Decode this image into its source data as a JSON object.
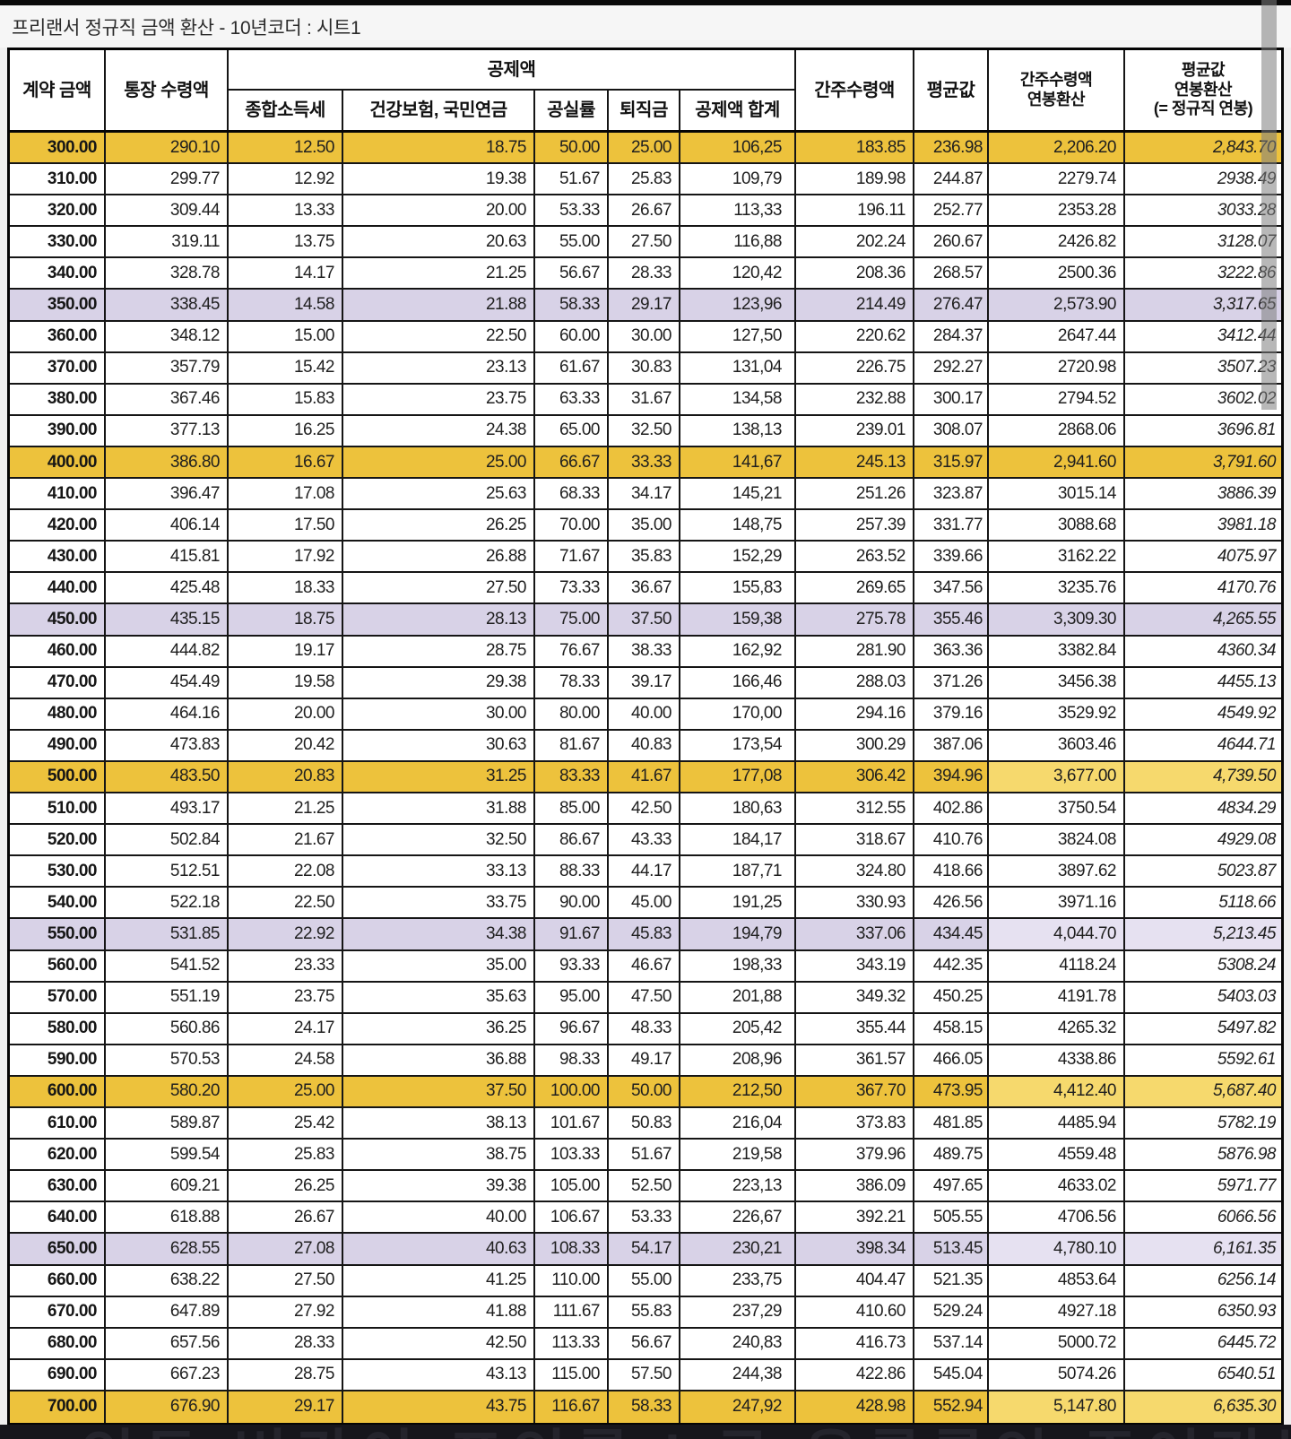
{
  "window": {
    "title": "프리랜서 정규직 금액 환산 - 10년코더 : 시트1"
  },
  "table": {
    "header": {
      "contract": "계약 금액",
      "bank_received": "통장 수령액",
      "deduction_group": "공제액",
      "sub": [
        "종합소득세",
        "건강보험, 국민연금",
        "공실률",
        "퇴직금",
        "공제액 합계"
      ],
      "deemed": "간주수령액",
      "average": "평균값",
      "deemed_annual": [
        "간주수령액",
        "연봉환산"
      ],
      "average_annual": [
        "평균값",
        "연봉환산",
        "(= 정규직 연봉)"
      ]
    },
    "rows": [
      {
        "hl": "y",
        "lr": false,
        "v": [
          "300.00",
          "290.10",
          "12.50",
          "18.75",
          "50.00",
          "25.00",
          "106,25",
          "183.85",
          "236.98",
          "2,206.20",
          "2,843.70"
        ]
      },
      {
        "hl": null,
        "lr": false,
        "v": [
          "310.00",
          "299.77",
          "12.92",
          "19.38",
          "51.67",
          "25.83",
          "109,79",
          "189.98",
          "244.87",
          "2279.74",
          "2938.49"
        ]
      },
      {
        "hl": null,
        "lr": false,
        "v": [
          "320.00",
          "309.44",
          "13.33",
          "20.00",
          "53.33",
          "26.67",
          "113,33",
          "196.11",
          "252.77",
          "2353.28",
          "3033.28"
        ]
      },
      {
        "hl": null,
        "lr": false,
        "v": [
          "330.00",
          "319.11",
          "13.75",
          "20.63",
          "55.00",
          "27.50",
          "116,88",
          "202.24",
          "260.67",
          "2426.82",
          "3128.07"
        ]
      },
      {
        "hl": null,
        "lr": false,
        "v": [
          "340.00",
          "328.78",
          "14.17",
          "21.25",
          "56.67",
          "28.33",
          "120,42",
          "208.36",
          "268.57",
          "2500.36",
          "3222.86"
        ]
      },
      {
        "hl": "p",
        "lr": false,
        "v": [
          "350.00",
          "338.45",
          "14.58",
          "21.88",
          "58.33",
          "29.17",
          "123,96",
          "214.49",
          "276.47",
          "2,573.90",
          "3,317.65"
        ]
      },
      {
        "hl": null,
        "lr": false,
        "v": [
          "360.00",
          "348.12",
          "15.00",
          "22.50",
          "60.00",
          "30.00",
          "127,50",
          "220.62",
          "284.37",
          "2647.44",
          "3412.44"
        ]
      },
      {
        "hl": null,
        "lr": false,
        "v": [
          "370.00",
          "357.79",
          "15.42",
          "23.13",
          "61.67",
          "30.83",
          "131,04",
          "226.75",
          "292.27",
          "2720.98",
          "3507.23"
        ]
      },
      {
        "hl": null,
        "lr": false,
        "v": [
          "380.00",
          "367.46",
          "15.83",
          "23.75",
          "63.33",
          "31.67",
          "134,58",
          "232.88",
          "300.17",
          "2794.52",
          "3602.02"
        ]
      },
      {
        "hl": null,
        "lr": false,
        "v": [
          "390.00",
          "377.13",
          "16.25",
          "24.38",
          "65.00",
          "32.50",
          "138,13",
          "239.01",
          "308.07",
          "2868.06",
          "3696.81"
        ]
      },
      {
        "hl": "y",
        "lr": false,
        "v": [
          "400.00",
          "386.80",
          "16.67",
          "25.00",
          "66.67",
          "33.33",
          "141,67",
          "245.13",
          "315.97",
          "2,941.60",
          "3,791.60"
        ]
      },
      {
        "hl": null,
        "lr": false,
        "v": [
          "410.00",
          "396.47",
          "17.08",
          "25.63",
          "68.33",
          "34.17",
          "145,21",
          "251.26",
          "323.87",
          "3015.14",
          "3886.39"
        ]
      },
      {
        "hl": null,
        "lr": false,
        "v": [
          "420.00",
          "406.14",
          "17.50",
          "26.25",
          "70.00",
          "35.00",
          "148,75",
          "257.39",
          "331.77",
          "3088.68",
          "3981.18"
        ]
      },
      {
        "hl": null,
        "lr": false,
        "v": [
          "430.00",
          "415.81",
          "17.92",
          "26.88",
          "71.67",
          "35.83",
          "152,29",
          "263.52",
          "339.66",
          "3162.22",
          "4075.97"
        ]
      },
      {
        "hl": null,
        "lr": false,
        "v": [
          "440.00",
          "425.48",
          "18.33",
          "27.50",
          "73.33",
          "36.67",
          "155,83",
          "269.65",
          "347.56",
          "3235.76",
          "4170.76"
        ]
      },
      {
        "hl": "p",
        "lr": false,
        "v": [
          "450.00",
          "435.15",
          "18.75",
          "28.13",
          "75.00",
          "37.50",
          "159,38",
          "275.78",
          "355.46",
          "3,309.30",
          "4,265.55"
        ]
      },
      {
        "hl": null,
        "lr": false,
        "v": [
          "460.00",
          "444.82",
          "19.17",
          "28.75",
          "76.67",
          "38.33",
          "162,92",
          "281.90",
          "363.36",
          "3382.84",
          "4360.34"
        ]
      },
      {
        "hl": null,
        "lr": false,
        "v": [
          "470.00",
          "454.49",
          "19.58",
          "29.38",
          "78.33",
          "39.17",
          "166,46",
          "288.03",
          "371.26",
          "3456.38",
          "4455.13"
        ]
      },
      {
        "hl": null,
        "lr": false,
        "v": [
          "480.00",
          "464.16",
          "20.00",
          "30.00",
          "80.00",
          "40.00",
          "170,00",
          "294.16",
          "379.16",
          "3529.92",
          "4549.92"
        ]
      },
      {
        "hl": null,
        "lr": false,
        "v": [
          "490.00",
          "473.83",
          "20.42",
          "30.63",
          "81.67",
          "40.83",
          "173,54",
          "300.29",
          "387.06",
          "3603.46",
          "4644.71"
        ]
      },
      {
        "hl": "y",
        "lr": true,
        "v": [
          "500.00",
          "483.50",
          "20.83",
          "31.25",
          "83.33",
          "41.67",
          "177,08",
          "306.42",
          "394.96",
          "3,677.00",
          "4,739.50"
        ]
      },
      {
        "hl": null,
        "lr": false,
        "v": [
          "510.00",
          "493.17",
          "21.25",
          "31.88",
          "85.00",
          "42.50",
          "180,63",
          "312.55",
          "402.86",
          "3750.54",
          "4834.29"
        ]
      },
      {
        "hl": null,
        "lr": false,
        "v": [
          "520.00",
          "502.84",
          "21.67",
          "32.50",
          "86.67",
          "43.33",
          "184,17",
          "318.67",
          "410.76",
          "3824.08",
          "4929.08"
        ]
      },
      {
        "hl": null,
        "lr": false,
        "v": [
          "530.00",
          "512.51",
          "22.08",
          "33.13",
          "88.33",
          "44.17",
          "187,71",
          "324.80",
          "418.66",
          "3897.62",
          "5023.87"
        ]
      },
      {
        "hl": null,
        "lr": false,
        "v": [
          "540.00",
          "522.18",
          "22.50",
          "33.75",
          "90.00",
          "45.00",
          "191,25",
          "330.93",
          "426.56",
          "3971.16",
          "5118.66"
        ]
      },
      {
        "hl": "p",
        "lr": true,
        "v": [
          "550.00",
          "531.85",
          "22.92",
          "34.38",
          "91.67",
          "45.83",
          "194,79",
          "337.06",
          "434.45",
          "4,044.70",
          "5,213.45"
        ]
      },
      {
        "hl": null,
        "lr": false,
        "v": [
          "560.00",
          "541.52",
          "23.33",
          "35.00",
          "93.33",
          "46.67",
          "198,33",
          "343.19",
          "442.35",
          "4118.24",
          "5308.24"
        ]
      },
      {
        "hl": null,
        "lr": false,
        "v": [
          "570.00",
          "551.19",
          "23.75",
          "35.63",
          "95.00",
          "47.50",
          "201,88",
          "349.32",
          "450.25",
          "4191.78",
          "5403.03"
        ]
      },
      {
        "hl": null,
        "lr": false,
        "v": [
          "580.00",
          "560.86",
          "24.17",
          "36.25",
          "96.67",
          "48.33",
          "205,42",
          "355.44",
          "458.15",
          "4265.32",
          "5497.82"
        ]
      },
      {
        "hl": null,
        "lr": false,
        "v": [
          "590.00",
          "570.53",
          "24.58",
          "36.88",
          "98.33",
          "49.17",
          "208,96",
          "361.57",
          "466.05",
          "4338.86",
          "5592.61"
        ]
      },
      {
        "hl": "y",
        "lr": true,
        "v": [
          "600.00",
          "580.20",
          "25.00",
          "37.50",
          "100.00",
          "50.00",
          "212,50",
          "367.70",
          "473.95",
          "4,412.40",
          "5,687.40"
        ]
      },
      {
        "hl": null,
        "lr": false,
        "v": [
          "610.00",
          "589.87",
          "25.42",
          "38.13",
          "101.67",
          "50.83",
          "216,04",
          "373.83",
          "481.85",
          "4485.94",
          "5782.19"
        ]
      },
      {
        "hl": null,
        "lr": false,
        "v": [
          "620.00",
          "599.54",
          "25.83",
          "38.75",
          "103.33",
          "51.67",
          "219,58",
          "379.96",
          "489.75",
          "4559.48",
          "5876.98"
        ]
      },
      {
        "hl": null,
        "lr": false,
        "v": [
          "630.00",
          "609.21",
          "26.25",
          "39.38",
          "105.00",
          "52.50",
          "223,13",
          "386.09",
          "497.65",
          "4633.02",
          "5971.77"
        ]
      },
      {
        "hl": null,
        "lr": false,
        "v": [
          "640.00",
          "618.88",
          "26.67",
          "40.00",
          "106.67",
          "53.33",
          "226,67",
          "392.21",
          "505.55",
          "4706.56",
          "6066.56"
        ]
      },
      {
        "hl": "p",
        "lr": true,
        "v": [
          "650.00",
          "628.55",
          "27.08",
          "40.63",
          "108.33",
          "54.17",
          "230,21",
          "398.34",
          "513.45",
          "4,780.10",
          "6,161.35"
        ]
      },
      {
        "hl": null,
        "lr": false,
        "v": [
          "660.00",
          "638.22",
          "27.50",
          "41.25",
          "110.00",
          "55.00",
          "233,75",
          "404.47",
          "521.35",
          "4853.64",
          "6256.14"
        ]
      },
      {
        "hl": null,
        "lr": false,
        "v": [
          "670.00",
          "647.89",
          "27.92",
          "41.88",
          "111.67",
          "55.83",
          "237,29",
          "410.60",
          "529.24",
          "4927.18",
          "6350.93"
        ]
      },
      {
        "hl": null,
        "lr": false,
        "v": [
          "680.00",
          "657.56",
          "28.33",
          "42.50",
          "113.33",
          "56.67",
          "240,83",
          "416.73",
          "537.14",
          "5000.72",
          "6445.72"
        ]
      },
      {
        "hl": null,
        "lr": false,
        "v": [
          "690.00",
          "667.23",
          "28.75",
          "43.13",
          "115.00",
          "57.50",
          "244,38",
          "422.86",
          "545.04",
          "5074.26",
          "6540.51"
        ]
      },
      {
        "hl": "y",
        "lr": true,
        "v": [
          "700.00",
          "676.90",
          "29.17",
          "43.75",
          "116.67",
          "58.33",
          "247,92",
          "428.98",
          "552.94",
          "5,147.80",
          "6,635.30"
        ]
      }
    ]
  },
  "footer": {
    "clipped_text": "인두 번간이 표인률 l 금 융률롤인 주어간는게 주를기므"
  },
  "colors": {
    "row_yellow": "#edc23c",
    "row_yellow_light": "#f6d96d",
    "row_purple": "#d8d2e7",
    "row_purple_light": "#e6e1f1",
    "grid_line": "#151515"
  }
}
